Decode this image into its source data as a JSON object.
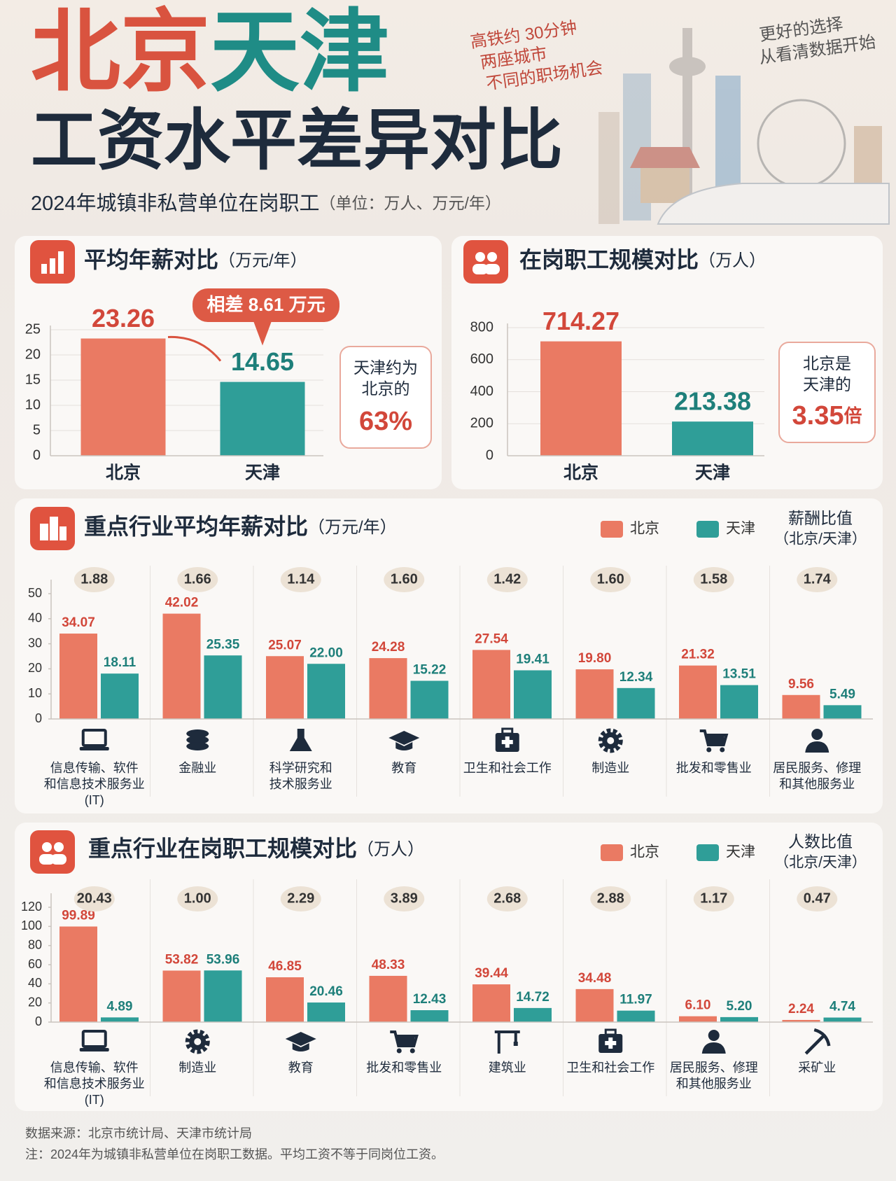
{
  "header": {
    "title_a": "北京",
    "title_b": "天津",
    "title_line2": "工资水平差异对比",
    "subtitle": "2024年城镇非私营单位在岗职工",
    "unit_note": "（单位：万人、万元/年）",
    "note_left": [
      "高铁约 30分钟",
      "两座城市",
      "不同的职场机会"
    ],
    "note_right": [
      "更好的选择",
      "从看清数据开始"
    ]
  },
  "chart_data": [
    {
      "type": "bar",
      "title": "平均年薪对比",
      "unit": "（万元/年）",
      "categories": [
        "北京",
        "天津"
      ],
      "values": [
        23.26,
        14.65
      ],
      "colors": [
        "#ea7a63",
        "#2f9e98"
      ],
      "ylim": [
        0,
        25
      ],
      "yticks": [
        0,
        5,
        10,
        15,
        20,
        25
      ],
      "grid": true,
      "badge": "相差 8.61 万元",
      "callout_lines": [
        "天津约为",
        "北京的"
      ],
      "callout_value": "63%"
    },
    {
      "type": "bar",
      "title": "在岗职工规模对比",
      "unit": "（万人）",
      "categories": [
        "北京",
        "天津"
      ],
      "values": [
        714.27,
        213.38
      ],
      "colors": [
        "#ea7a63",
        "#2f9e98"
      ],
      "ylim": [
        0,
        800
      ],
      "yticks": [
        0,
        200,
        400,
        600,
        800
      ],
      "grid": true,
      "callout_lines": [
        "北京是",
        "天津的"
      ],
      "callout_value": "3.35",
      "callout_unit": "倍"
    },
    {
      "type": "grouped_bar",
      "title": "重点行业平均年薪对比",
      "unit": "（万元/年）",
      "categories": [
        [
          "信息传输、软件",
          "和信息技术服务业",
          "(IT)"
        ],
        [
          "金融业"
        ],
        [
          "科学研究和",
          "技术服务业"
        ],
        [
          "教育"
        ],
        [
          "卫生和社会工作"
        ],
        [
          "制造业"
        ],
        [
          "批发和零售业"
        ],
        [
          "居民服务、修理",
          "和其他服务业"
        ]
      ],
      "series": [
        {
          "name": "北京",
          "color": "#ea7a63",
          "values": [
            34.07,
            42.02,
            25.07,
            24.28,
            27.54,
            19.8,
            21.32,
            9.56
          ],
          "value_labels": [
            "34.07",
            "42.02",
            "25.07",
            "24.28",
            "27.54",
            "19.80",
            "21.32",
            "9.56"
          ]
        },
        {
          "name": "天津",
          "color": "#2f9e98",
          "values": [
            18.11,
            25.35,
            22.0,
            15.22,
            19.41,
            12.34,
            13.51,
            5.49
          ],
          "value_labels": [
            "18.11",
            "25.35",
            "22.00",
            "15.22",
            "19.41",
            "12.34",
            "13.51",
            "5.49"
          ]
        }
      ],
      "ratio": {
        "name": "薪酬比值",
        "note": "（北京/天津）",
        "values": [
          1.88,
          1.66,
          1.14,
          1.6,
          1.42,
          1.6,
          1.58,
          1.74
        ],
        "value_labels": [
          "1.88",
          "1.66",
          "1.14",
          "1.60",
          "1.42",
          "1.60",
          "1.58",
          "1.74"
        ]
      },
      "ylim": [
        0,
        50
      ],
      "yticks": [
        0,
        10,
        20,
        30,
        40,
        50
      ]
    },
    {
      "type": "grouped_bar",
      "title": "重点行业在岗职工规模对比",
      "unit": "（万人）",
      "categories": [
        [
          "信息传输、软件",
          "和信息技术服务业",
          "(IT)"
        ],
        [
          "制造业"
        ],
        [
          "教育"
        ],
        [
          "批发和零售业"
        ],
        [
          "建筑业"
        ],
        [
          "卫生和社会工作"
        ],
        [
          "居民服务、修理",
          "和其他服务业"
        ],
        [
          "采矿业"
        ]
      ],
      "series": [
        {
          "name": "北京",
          "color": "#ea7a63",
          "values": [
            99.89,
            53.82,
            46.85,
            48.33,
            39.44,
            34.48,
            6.1,
            2.24
          ],
          "value_labels": [
            "99.89",
            "53.82",
            "46.85",
            "48.33",
            "39.44",
            "34.48",
            "6.10",
            "2.24"
          ]
        },
        {
          "name": "天津",
          "color": "#2f9e98",
          "values": [
            4.89,
            53.96,
            20.46,
            12.43,
            14.72,
            11.97,
            5.2,
            4.74
          ],
          "value_labels": [
            "4.89",
            "53.96",
            "20.46",
            "12.43",
            "14.72",
            "11.97",
            "5.20",
            "4.74"
          ]
        }
      ],
      "ratio": {
        "name": "人数比值",
        "note": "（北京/天津）",
        "values": [
          20.43,
          1.0,
          2.29,
          3.89,
          2.68,
          2.88,
          1.17,
          0.47
        ],
        "value_labels": [
          "20.43",
          "1.00",
          "2.29",
          "3.89",
          "2.68",
          "2.88",
          "1.17",
          "0.47"
        ]
      },
      "ylim": [
        0,
        120
      ],
      "yticks": [
        0,
        20,
        40,
        60,
        80,
        100,
        120
      ]
    }
  ],
  "footer": {
    "source": "数据来源：北京市统计局、天津市统计局",
    "note": "注：2024年为城镇非私营单位在岗职工数据。平均工资不等于同岗位工资。"
  }
}
